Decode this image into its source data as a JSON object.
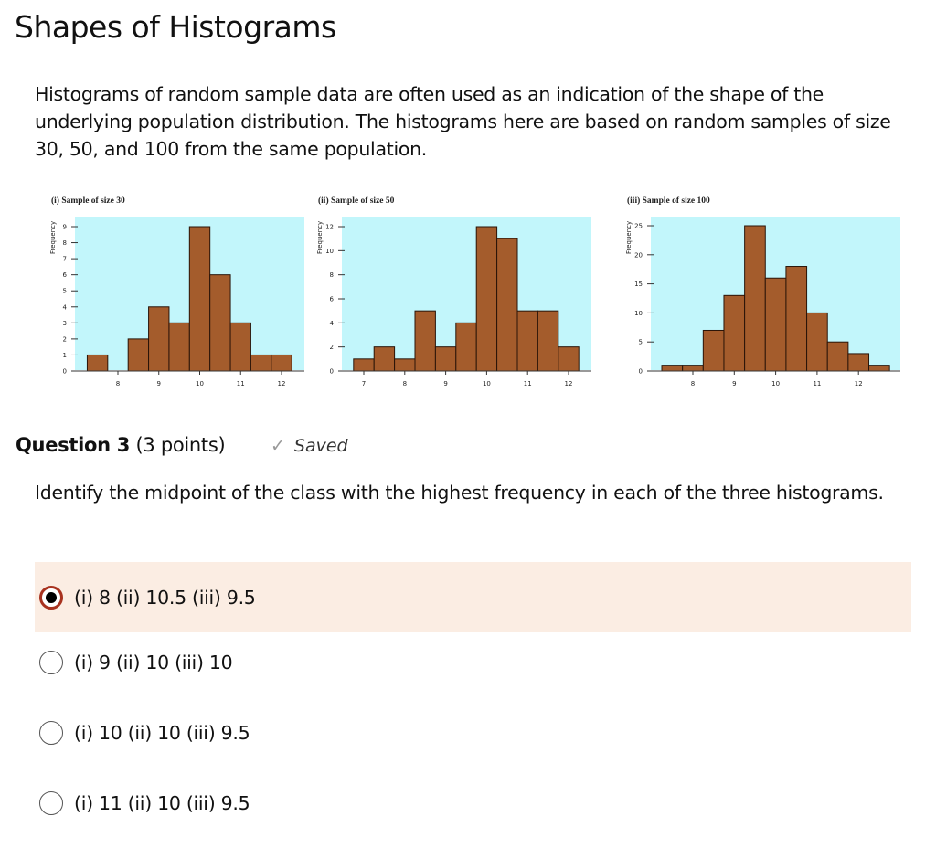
{
  "page": {
    "title": "Shapes of Histograms",
    "intro": "Histograms of random sample data are often used as an indication of the shape of the underlying population distribution. The histograms here are based on random samples of size 30, 50, and 100 from the same population."
  },
  "chart_data": [
    {
      "type": "bar",
      "title": "(i) Sample of size 30",
      "ylabel": "Frequency",
      "xlabel": "",
      "x": [
        7.5,
        8,
        8.5,
        9,
        9.5,
        10,
        10.5,
        11,
        11.5,
        12
      ],
      "values": [
        1,
        0,
        2,
        4,
        3,
        9,
        6,
        3,
        1,
        1
      ],
      "bin_width": 0.5,
      "xticks": [
        8,
        9,
        10,
        11,
        12
      ],
      "yticks": [
        0,
        1,
        2,
        3,
        4,
        5,
        6,
        7,
        8,
        9
      ],
      "ylim": [
        0,
        9
      ],
      "xlim": [
        7,
        12.5
      ]
    },
    {
      "type": "bar",
      "title": "(ii) Sample of size 50",
      "ylabel": "Frequency",
      "xlabel": "",
      "x": [
        7,
        7.5,
        8,
        8.5,
        9,
        9.5,
        10,
        10.5,
        11,
        11.5,
        12
      ],
      "values": [
        1,
        2,
        1,
        5,
        2,
        4,
        12,
        11,
        5,
        5,
        2
      ],
      "bin_width": 0.5,
      "xticks": [
        7,
        8,
        9,
        10,
        11,
        12
      ],
      "yticks": [
        0,
        2,
        4,
        6,
        8,
        10,
        12
      ],
      "ylim": [
        0,
        12
      ],
      "xlim": [
        6.5,
        12.5
      ]
    },
    {
      "type": "bar",
      "title": "(iii) Sample of size 100",
      "ylabel": "Frequency",
      "xlabel": "",
      "x": [
        7.5,
        8,
        8.5,
        9,
        9.5,
        10,
        10.5,
        11,
        11.5,
        12,
        12.5
      ],
      "values": [
        1,
        1,
        7,
        13,
        25,
        16,
        18,
        10,
        5,
        3,
        1
      ],
      "bin_width": 0.5,
      "xticks": [
        8,
        9,
        10,
        11,
        12
      ],
      "yticks": [
        0,
        5,
        10,
        15,
        20,
        25
      ],
      "ylim": [
        0,
        25
      ],
      "xlim": [
        7,
        12.9
      ]
    }
  ],
  "question": {
    "number": "Question 3",
    "points": "(3 points)",
    "status": "Saved",
    "text": "Identify the midpoint of the class with the highest frequency in each of the three histograms.",
    "options": [
      {
        "label": "(i) 8 (ii) 10.5 (iii) 9.5",
        "selected": true
      },
      {
        "label": "(i) 9 (ii) 10 (iii) 10",
        "selected": false
      },
      {
        "label": "(i) 10 (ii) 10 (iii) 9.5",
        "selected": false
      },
      {
        "label": "(i) 11 (ii) 10 (iii) 9.5",
        "selected": false
      }
    ]
  },
  "colors": {
    "bar": "#a45c2c",
    "plot_bg": "#c2f6fb",
    "selected_bg": "#fbede3",
    "radio_ring": "#a8321f"
  }
}
